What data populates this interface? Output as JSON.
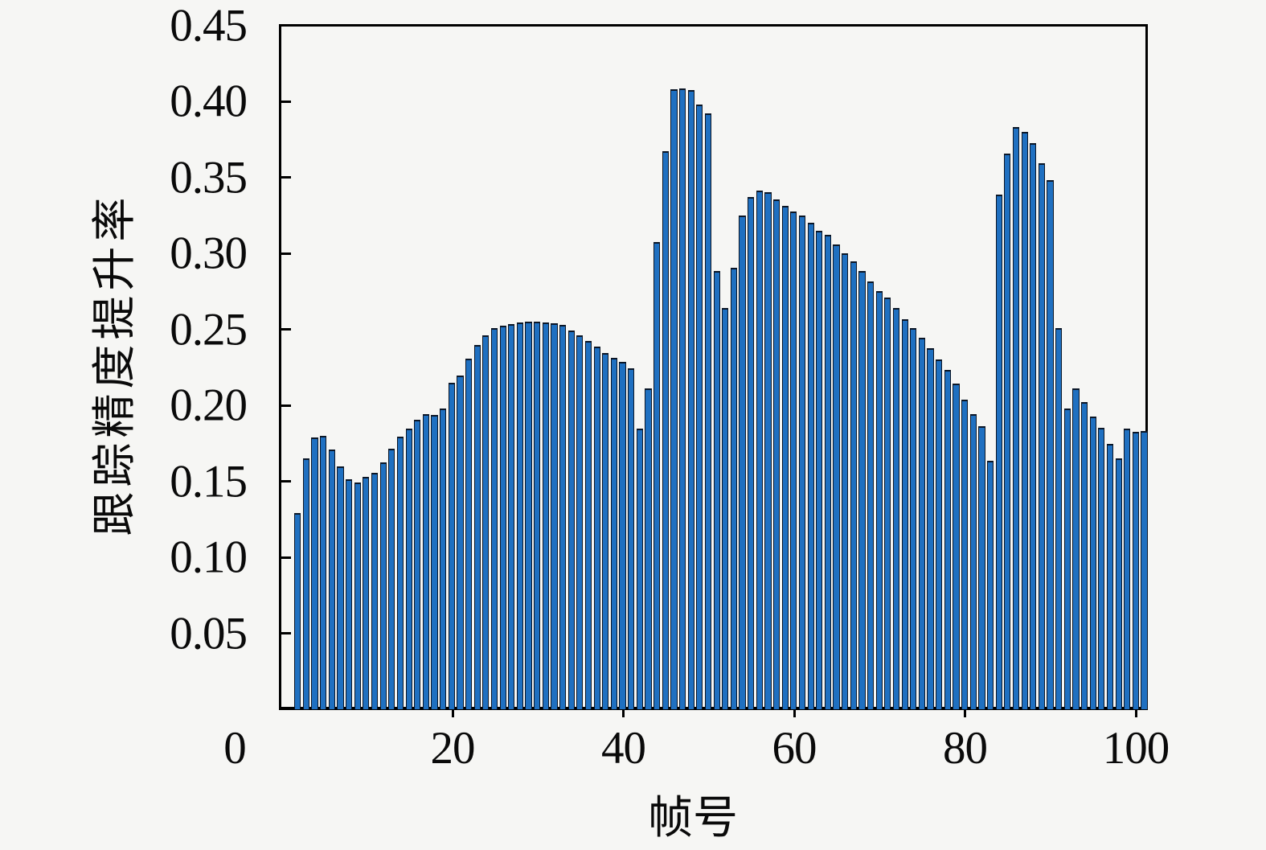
{
  "figure": {
    "background": "#f6f6f4",
    "plot_background": "#f6f6f4",
    "spine_color": "#000000"
  },
  "chart_data": {
    "type": "bar",
    "title": "",
    "xlabel": "帧号",
    "ylabel": "跟踪精度提升率",
    "x_tick_values": [
      0,
      20,
      40,
      60,
      80,
      100
    ],
    "x_tick_labels": [
      "0",
      "20",
      "40",
      "60",
      "80",
      "100"
    ],
    "y_tick_values": [
      0.05,
      0.1,
      0.15,
      0.2,
      0.25,
      0.3,
      0.35,
      0.4,
      0.45
    ],
    "y_tick_labels": [
      "0.05",
      "0.10",
      "0.15",
      "0.20",
      "0.25",
      "0.30",
      "0.35",
      "0.40",
      "0.45"
    ],
    "xlim": [
      0,
      101.5
    ],
    "ylim": [
      0,
      0.451
    ],
    "grid": false,
    "legend": null,
    "bar_color": "#1f70c1",
    "bar_edge_color": "#0b1626",
    "n_bars": 100,
    "frame_start": 1,
    "values": [
      0.129,
      0.165,
      0.179,
      0.18,
      0.171,
      0.16,
      0.1514,
      0.1493,
      0.1528,
      0.1555,
      0.1625,
      0.1714,
      0.1793,
      0.1846,
      0.1907,
      0.1943,
      0.1938,
      0.198,
      0.215,
      0.2198,
      0.2308,
      0.2396,
      0.2463,
      0.2507,
      0.2525,
      0.2537,
      0.2548,
      0.2551,
      0.2551,
      0.2546,
      0.2542,
      0.2528,
      0.2495,
      0.246,
      0.2425,
      0.2385,
      0.2345,
      0.2315,
      0.2285,
      0.2245,
      0.1846,
      0.2112,
      0.3077,
      0.3675,
      0.408,
      0.4085,
      0.4073,
      0.398,
      0.3924,
      0.2883,
      0.2639,
      0.2907,
      0.325,
      0.3372,
      0.3415,
      0.3402,
      0.3354,
      0.3313,
      0.3274,
      0.3251,
      0.3204,
      0.3151,
      0.3124,
      0.3059,
      0.3001,
      0.2948,
      0.2883,
      0.2816,
      0.2754,
      0.271,
      0.2643,
      0.2569,
      0.2507,
      0.2446,
      0.2375,
      0.2304,
      0.2234,
      0.2142,
      0.204,
      0.1943,
      0.1864,
      0.1634,
      0.3389,
      0.3659,
      0.383,
      0.38,
      0.3724,
      0.3592,
      0.3481,
      0.2507,
      0.1978,
      0.2111,
      0.2022,
      0.1925,
      0.1855,
      0.1749,
      0.1652,
      0.1846,
      0.1828,
      0.183
    ]
  }
}
